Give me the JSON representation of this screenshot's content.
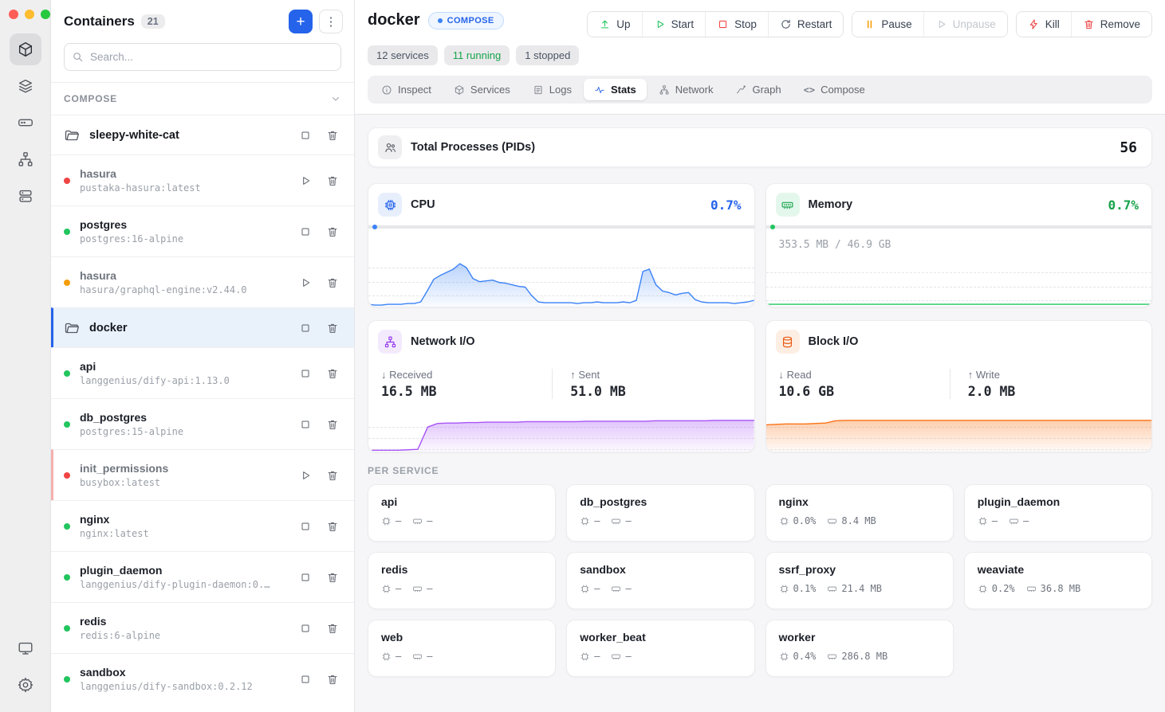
{
  "sidebar": {
    "title": "Containers",
    "count": "21",
    "search_placeholder": "Search...",
    "section": "COMPOSE",
    "items": [
      {
        "type": "group",
        "name": "sleepy-white-cat"
      },
      {
        "type": "container",
        "name": "hasura",
        "image": "pustaka-hasura:latest",
        "status": "exited"
      },
      {
        "type": "container",
        "name": "postgres",
        "image": "postgres:16-alpine",
        "status": "running"
      },
      {
        "type": "container",
        "name": "hasura",
        "image": "hasura/graphql-engine:v2.44.0",
        "status": "restarting"
      },
      {
        "type": "group",
        "name": "docker",
        "selected": true
      },
      {
        "type": "container",
        "name": "api",
        "image": "langgenius/dify-api:1.13.0",
        "status": "running"
      },
      {
        "type": "container",
        "name": "db_postgres",
        "image": "postgres:15-alpine",
        "status": "running"
      },
      {
        "type": "container",
        "name": "init_permissions",
        "image": "busybox:latest",
        "status": "exited"
      },
      {
        "type": "container",
        "name": "nginx",
        "image": "nginx:latest",
        "status": "running"
      },
      {
        "type": "container",
        "name": "plugin_daemon",
        "image": "langgenius/dify-plugin-daemon:0.…",
        "status": "running"
      },
      {
        "type": "container",
        "name": "redis",
        "image": "redis:6-alpine",
        "status": "running"
      },
      {
        "type": "container",
        "name": "sandbox",
        "image": "langgenius/dify-sandbox:0.2.12",
        "status": "running"
      }
    ]
  },
  "header": {
    "title": "docker",
    "badge": "COMPOSE",
    "stats_badges": [
      {
        "label": "12 services",
        "color": "gray"
      },
      {
        "label": "11 running",
        "color": "green"
      },
      {
        "label": "1 stopped",
        "color": "gray"
      }
    ],
    "actions": {
      "up": "Up",
      "start": "Start",
      "stop": "Stop",
      "restart": "Restart",
      "pause": "Pause",
      "unpause": "Unpause",
      "kill": "Kill",
      "remove": "Remove"
    },
    "tabs": [
      {
        "label": "Inspect"
      },
      {
        "label": "Services"
      },
      {
        "label": "Logs"
      },
      {
        "label": "Stats",
        "active": true
      },
      {
        "label": "Network"
      },
      {
        "label": "Graph"
      },
      {
        "label": "Compose"
      }
    ]
  },
  "stats": {
    "total_processes": {
      "label": "Total Processes (PIDs)",
      "value": "56"
    },
    "cpu": {
      "label": "CPU",
      "value": "0.7%"
    },
    "memory": {
      "label": "Memory",
      "value": "0.7%",
      "usage": "353.5 MB / 46.9 GB"
    },
    "network": {
      "label": "Network I/O",
      "received_label": "↓ Received",
      "received": "16.5 MB",
      "sent_label": "↑ Sent",
      "sent": "51.0 MB"
    },
    "block": {
      "label": "Block I/O",
      "read_label": "↓ Read",
      "read": "10.6 GB",
      "write_label": "↑ Write",
      "write": "2.0 MB"
    },
    "per_service_label": "PER SERVICE",
    "services": [
      {
        "name": "api",
        "cpu": "–",
        "mem": "–"
      },
      {
        "name": "db_postgres",
        "cpu": "–",
        "mem": "–"
      },
      {
        "name": "nginx",
        "cpu": "0.0%",
        "mem": "8.4 MB"
      },
      {
        "name": "plugin_daemon",
        "cpu": "–",
        "mem": "–"
      },
      {
        "name": "redis",
        "cpu": "–",
        "mem": "–"
      },
      {
        "name": "sandbox",
        "cpu": "–",
        "mem": "–"
      },
      {
        "name": "ssrf_proxy",
        "cpu": "0.1%",
        "mem": "21.4 MB"
      },
      {
        "name": "weaviate",
        "cpu": "0.2%",
        "mem": "36.8 MB"
      },
      {
        "name": "web",
        "cpu": "–",
        "mem": "–"
      },
      {
        "name": "worker_beat",
        "cpu": "–",
        "mem": "–"
      },
      {
        "name": "worker",
        "cpu": "0.4%",
        "mem": "286.8 MB"
      }
    ]
  },
  "colors": {
    "accent_blue": "#2563eb",
    "chart_blue": "#3b82f6",
    "green": "#22c55e",
    "purple": "#a855f7",
    "orange": "#f97316",
    "red": "#ef4444"
  },
  "chart_data": [
    {
      "id": "cpu",
      "type": "area",
      "title": "CPU usage sparkline",
      "current": "0.7%",
      "color": "#3b82f6",
      "area": true,
      "ylim": [
        0,
        100
      ],
      "values": [
        3,
        2,
        2,
        3,
        3,
        3,
        4,
        4,
        6,
        20,
        35,
        40,
        44,
        48,
        55,
        50,
        36,
        32,
        33,
        34,
        31,
        30,
        28,
        26,
        25,
        14,
        6,
        5,
        5,
        5,
        5,
        5,
        4,
        5,
        5,
        6,
        5,
        5,
        5,
        6,
        5,
        8,
        45,
        48,
        28,
        20,
        18,
        15,
        17,
        18,
        9,
        6,
        5,
        5,
        5,
        5,
        4,
        5,
        6,
        8
      ]
    },
    {
      "id": "memory",
      "type": "line",
      "title": "Memory usage sparkline",
      "current": "0.7%",
      "color": "#22c55e",
      "area": false,
      "ylim": [
        0,
        100
      ],
      "values": [
        3,
        3,
        3,
        3,
        3,
        3,
        3,
        3,
        3,
        3,
        3,
        3,
        3,
        3,
        3,
        3,
        3,
        3,
        3,
        3,
        3,
        3,
        3,
        3,
        3,
        3,
        3,
        3,
        3,
        3,
        3,
        3,
        3,
        3,
        3,
        3,
        3,
        3,
        3,
        3
      ]
    },
    {
      "id": "network",
      "type": "area",
      "title": "Network I/O sparkline",
      "received": "16.5 MB",
      "sent": "51.0 MB",
      "color": "#a855f7",
      "area": true,
      "ylim": [
        0,
        100
      ],
      "values": [
        3,
        3,
        3,
        3,
        4,
        5,
        55,
        63,
        64,
        64,
        65,
        65,
        66,
        66,
        66,
        66,
        67,
        67,
        67,
        67,
        67,
        67,
        68,
        68,
        68,
        68,
        68,
        68,
        68,
        69,
        69,
        69,
        69,
        69,
        69,
        70,
        70,
        70,
        70,
        70
      ]
    },
    {
      "id": "block",
      "type": "area",
      "title": "Block I/O sparkline",
      "read": "10.6 GB",
      "write": "2.0 MB",
      "color": "#f97316",
      "area": true,
      "ylim": [
        0,
        100
      ],
      "values": [
        60,
        61,
        62,
        62,
        62,
        63,
        64,
        69,
        70,
        70,
        70,
        70,
        70,
        70,
        70,
        70,
        70,
        70,
        70,
        70,
        70,
        70,
        70,
        70,
        70,
        70,
        70,
        70,
        70,
        70,
        70,
        70,
        70,
        70,
        70,
        70,
        70,
        70,
        70,
        70
      ]
    }
  ]
}
